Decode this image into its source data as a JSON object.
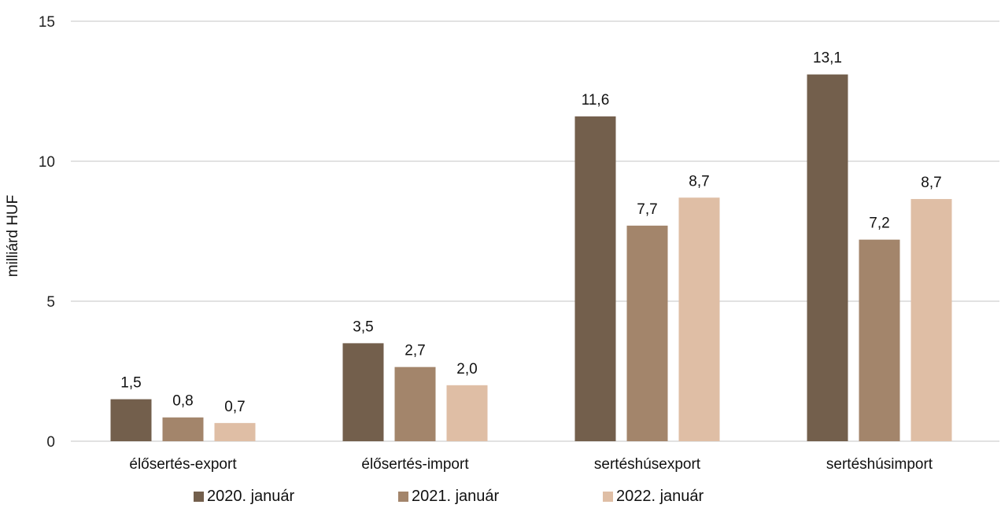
{
  "chart_data": {
    "type": "bar",
    "ylabel": "milliárd HUF",
    "ylim": [
      0,
      15
    ],
    "yticks": [
      0,
      5,
      10,
      15
    ],
    "grid": true,
    "legend_position": "bottom",
    "categories": [
      "élősertés-export",
      "élősertés-import",
      "sertéshúsexport",
      "sertéshúsimport"
    ],
    "series": [
      {
        "name": "2020. január",
        "color": "#735f4c",
        "values": [
          1.5,
          3.5,
          11.6,
          13.1
        ],
        "labels": [
          "1,5",
          "3,5",
          "11,6",
          "13,1"
        ]
      },
      {
        "name": "2021. január",
        "color": "#a3856b",
        "values": [
          0.85,
          2.65,
          7.7,
          7.2
        ],
        "labels": [
          "0,8",
          "2,7",
          "7,7",
          "7,2"
        ]
      },
      {
        "name": "2022. január",
        "color": "#dfbea5",
        "values": [
          0.65,
          2.0,
          8.7,
          8.65
        ],
        "labels": [
          "0,7",
          "2,0",
          "8,7",
          "8,7"
        ]
      }
    ]
  }
}
